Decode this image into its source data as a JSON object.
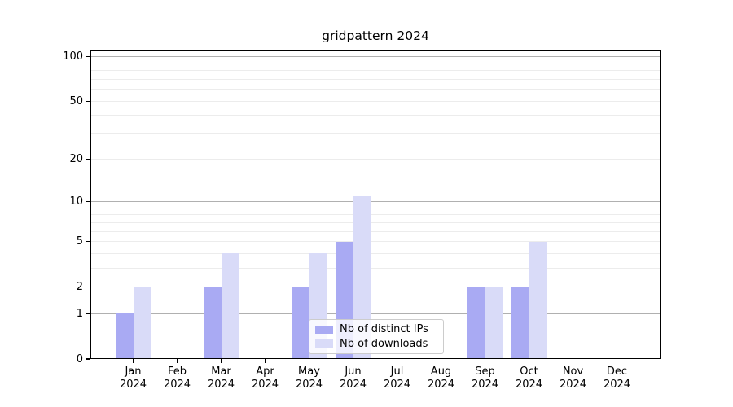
{
  "chart_data": {
    "type": "bar",
    "title": "gridpattern 2024",
    "categories": [
      "Jan 2024",
      "Feb 2024",
      "Mar 2024",
      "Apr 2024",
      "May 2024",
      "Jun 2024",
      "Jul 2024",
      "Aug 2024",
      "Sep 2024",
      "Oct 2024",
      "Nov 2024",
      "Dec 2024"
    ],
    "series": [
      {
        "name": "Nb of distinct IPs",
        "color": "#a9aaf3",
        "values": [
          1,
          0,
          2,
          0,
          2,
          5,
          0,
          0,
          2,
          2,
          0,
          0
        ]
      },
      {
        "name": "Nb of downloads",
        "color": "#d9dbf8",
        "values": [
          2,
          0,
          4,
          0,
          4,
          11,
          0,
          0,
          2,
          5,
          0,
          0
        ]
      }
    ],
    "y_scale": "log10(value+1)",
    "y_ticks": [
      0,
      1,
      2,
      5,
      10,
      20,
      50,
      100
    ],
    "y_major_gridlines": [
      1,
      10,
      100
    ],
    "y_minor_gridlines": [
      2,
      3,
      4,
      5,
      6,
      7,
      8,
      9,
      20,
      30,
      40,
      50,
      60,
      70,
      80,
      90
    ],
    "ylim": [
      0,
      110
    ],
    "xlabel": "",
    "ylabel": "",
    "grid": "horizontal",
    "legend_position": "lower-center-inside",
    "colors": {
      "axis": "#000000",
      "major_grid": "#b0b0b0",
      "minor_grid": "#ececec",
      "background": "#ffffff"
    }
  }
}
